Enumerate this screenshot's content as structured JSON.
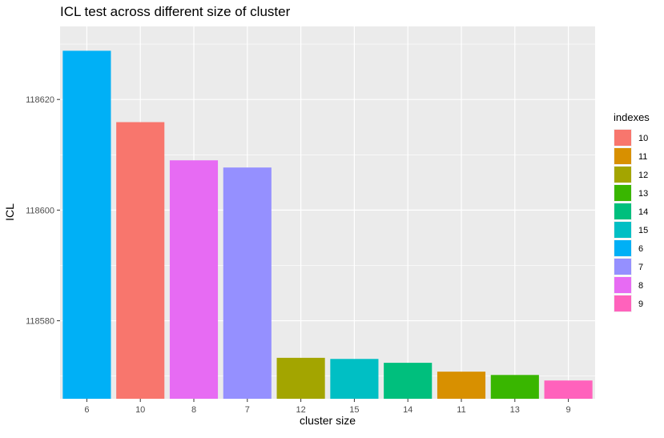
{
  "chart_data": {
    "type": "bar",
    "title": "ICL test across different size of cluster",
    "xlabel": "cluster size",
    "ylabel": "ICL",
    "categories": [
      "6",
      "10",
      "8",
      "7",
      "12",
      "15",
      "14",
      "11",
      "13",
      "9"
    ],
    "values": [
      118628.8,
      118615.9,
      118609.0,
      118607.7,
      118573.3,
      118573.1,
      118572.4,
      118570.8,
      118570.2,
      118569.2
    ],
    "bar_colors": [
      "#00B0F6",
      "#F8766D",
      "#E76BF3",
      "#9590FF",
      "#A3A500",
      "#00BFC4",
      "#00BF7D",
      "#D89000",
      "#39B600",
      "#FF62BC"
    ],
    "ylim": [
      118565.9,
      118633.2
    ],
    "y_ticks": [
      118580,
      118600,
      118620
    ],
    "grid": true,
    "background": "#EBEBEB",
    "legend": {
      "title": "indexes",
      "placement": "right",
      "entries": [
        {
          "label": "10",
          "color": "#F8766D"
        },
        {
          "label": "11",
          "color": "#D89000"
        },
        {
          "label": "12",
          "color": "#A3A500"
        },
        {
          "label": "13",
          "color": "#39B600"
        },
        {
          "label": "14",
          "color": "#00BF7D"
        },
        {
          "label": "15",
          "color": "#00BFC4"
        },
        {
          "label": "6",
          "color": "#00B0F6"
        },
        {
          "label": "7",
          "color": "#9590FF"
        },
        {
          "label": "8",
          "color": "#E76BF3"
        },
        {
          "label": "9",
          "color": "#FF62BC"
        }
      ]
    }
  }
}
